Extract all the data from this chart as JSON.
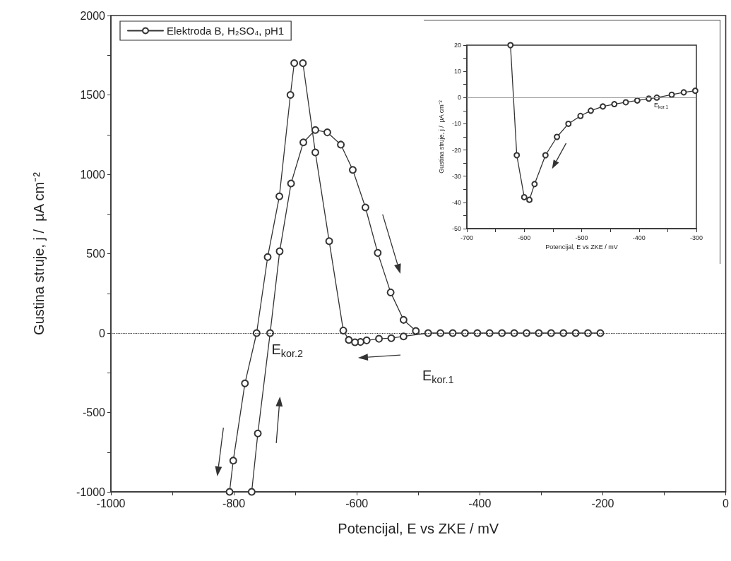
{
  "chart_data": [
    {
      "type": "line",
      "xlabel": "Potencijal, E vs ZKE / mV",
      "ylabel": "Gustina struje, j /  µA cm⁻²",
      "xlim": [
        -1000,
        0
      ],
      "xticks": [
        -1000,
        {
          "value": -900,
          "label": null
        },
        -800,
        {
          "value": -700,
          "label": null
        },
        -600,
        {
          "value": -500,
          "label": null
        },
        -400,
        {
          "value": -300,
          "label": null
        },
        -200,
        {
          "value": -100,
          "label": null
        },
        0
      ],
      "ylim": [
        -1000,
        2000
      ],
      "yticks": [
        -1000,
        {
          "value": -750,
          "label": null
        },
        -500,
        {
          "value": -250,
          "label": null
        },
        0,
        {
          "value": 250,
          "label": null
        },
        500,
        {
          "value": 750,
          "label": null
        },
        1000,
        {
          "value": 1250,
          "label": null
        },
        1500,
        {
          "value": 1750,
          "label": null
        },
        2000
      ],
      "grid": false,
      "legend": "top left",
      "marker": "circle",
      "ref_lines": [
        {
          "axis": "y",
          "value": 0,
          "color": "#333333",
          "line_style": "dotted"
        }
      ],
      "annotations": [
        {
          "text": "E$_{kor.2}$",
          "x": -741,
          "y": 0
        },
        "E$_{kor.1}$"
      ],
      "series": [
        {
          "name": "Elektroda B, H₂SO₄, pH1",
          "color": "#333333",
          "x": [
            -204,
            -224,
            -244,
            -264,
            -284,
            -304,
            -324,
            -344,
            -364,
            -384,
            -404,
            -424,
            -444,
            -464,
            -484,
            -524,
            -544,
            -564,
            -584,
            -594,
            -603,
            -613,
            -622,
            -645,
            -667.5,
            -687.7,
            -694,
            -701.8,
            -708,
            -726,
            -745,
            -763,
            -782,
            -801,
            -807,
            -790,
            -771,
            -761,
            -741,
            -725.5,
            -707,
            -687,
            -667.5,
            -648,
            -626,
            -606.6,
            -586,
            -566,
            -545,
            -524,
            -504
          ],
          "values": [
            0,
            0,
            0,
            0,
            0,
            0,
            0,
            0,
            0,
            0,
            0,
            0,
            0,
            0,
            0,
            -21,
            -32,
            -36,
            -46,
            -56,
            -58,
            -43,
            16,
            579,
            1138,
            1700,
            null,
            1700,
            1500,
            861,
            479,
            0,
            -317,
            -803,
            -1000,
            null,
            -1000,
            -632,
            0,
            515,
            942,
            1201,
            1279,
            1264,
            1187,
            1028,
            791,
            505,
            256,
            83,
            13
          ]
        }
      ]
    },
    {
      "type": "line",
      "xlabel": "Potencijal, E vs ZKE / mV",
      "ylabel": "Gustina struje, j /  µA cm⁻²",
      "xlim": [
        -700,
        -300
      ],
      "xticks": [
        -700,
        {
          "value": -650,
          "label": null
        },
        -600,
        {
          "value": -550,
          "label": null
        },
        -500,
        {
          "value": -450,
          "label": null
        },
        -400,
        {
          "value": -350,
          "label": null
        },
        -300
      ],
      "ylim": [
        -50,
        20
      ],
      "yticks": [
        -50,
        {
          "value": -45,
          "label": null
        },
        -40,
        {
          "value": -35,
          "label": null
        },
        -30,
        {
          "value": -25,
          "label": null
        },
        -20,
        {
          "value": -15,
          "label": null
        },
        -10,
        {
          "value": -5,
          "label": null
        },
        0,
        {
          "value": 5,
          "label": null
        },
        10,
        {
          "value": 15,
          "label": null
        },
        20
      ],
      "grid": false,
      "marker": "circle",
      "ref_lines": [
        {
          "axis": "y",
          "value": 0,
          "color": "#999999",
          "line_style": "solid"
        }
      ],
      "annotations": [
        {
          "text": "E$_{kor.1}$",
          "x": -369,
          "y": 0
        }
      ],
      "series": [
        {
          "color": "#333333",
          "x": [
            -624,
            -613,
            -600,
            -591,
            -582,
            -563,
            -543,
            -523,
            -502,
            -484,
            -463,
            -443,
            -423,
            -403,
            -383,
            -369,
            -343,
            -322,
            -302
          ],
          "values": [
            20,
            -22,
            -38,
            -39,
            -33,
            -22,
            -15,
            -10,
            -7,
            -5,
            -3.4,
            -2.5,
            -1.8,
            -1.1,
            -0.4,
            0,
            1.1,
            2,
            2.6
          ]
        }
      ]
    }
  ]
}
